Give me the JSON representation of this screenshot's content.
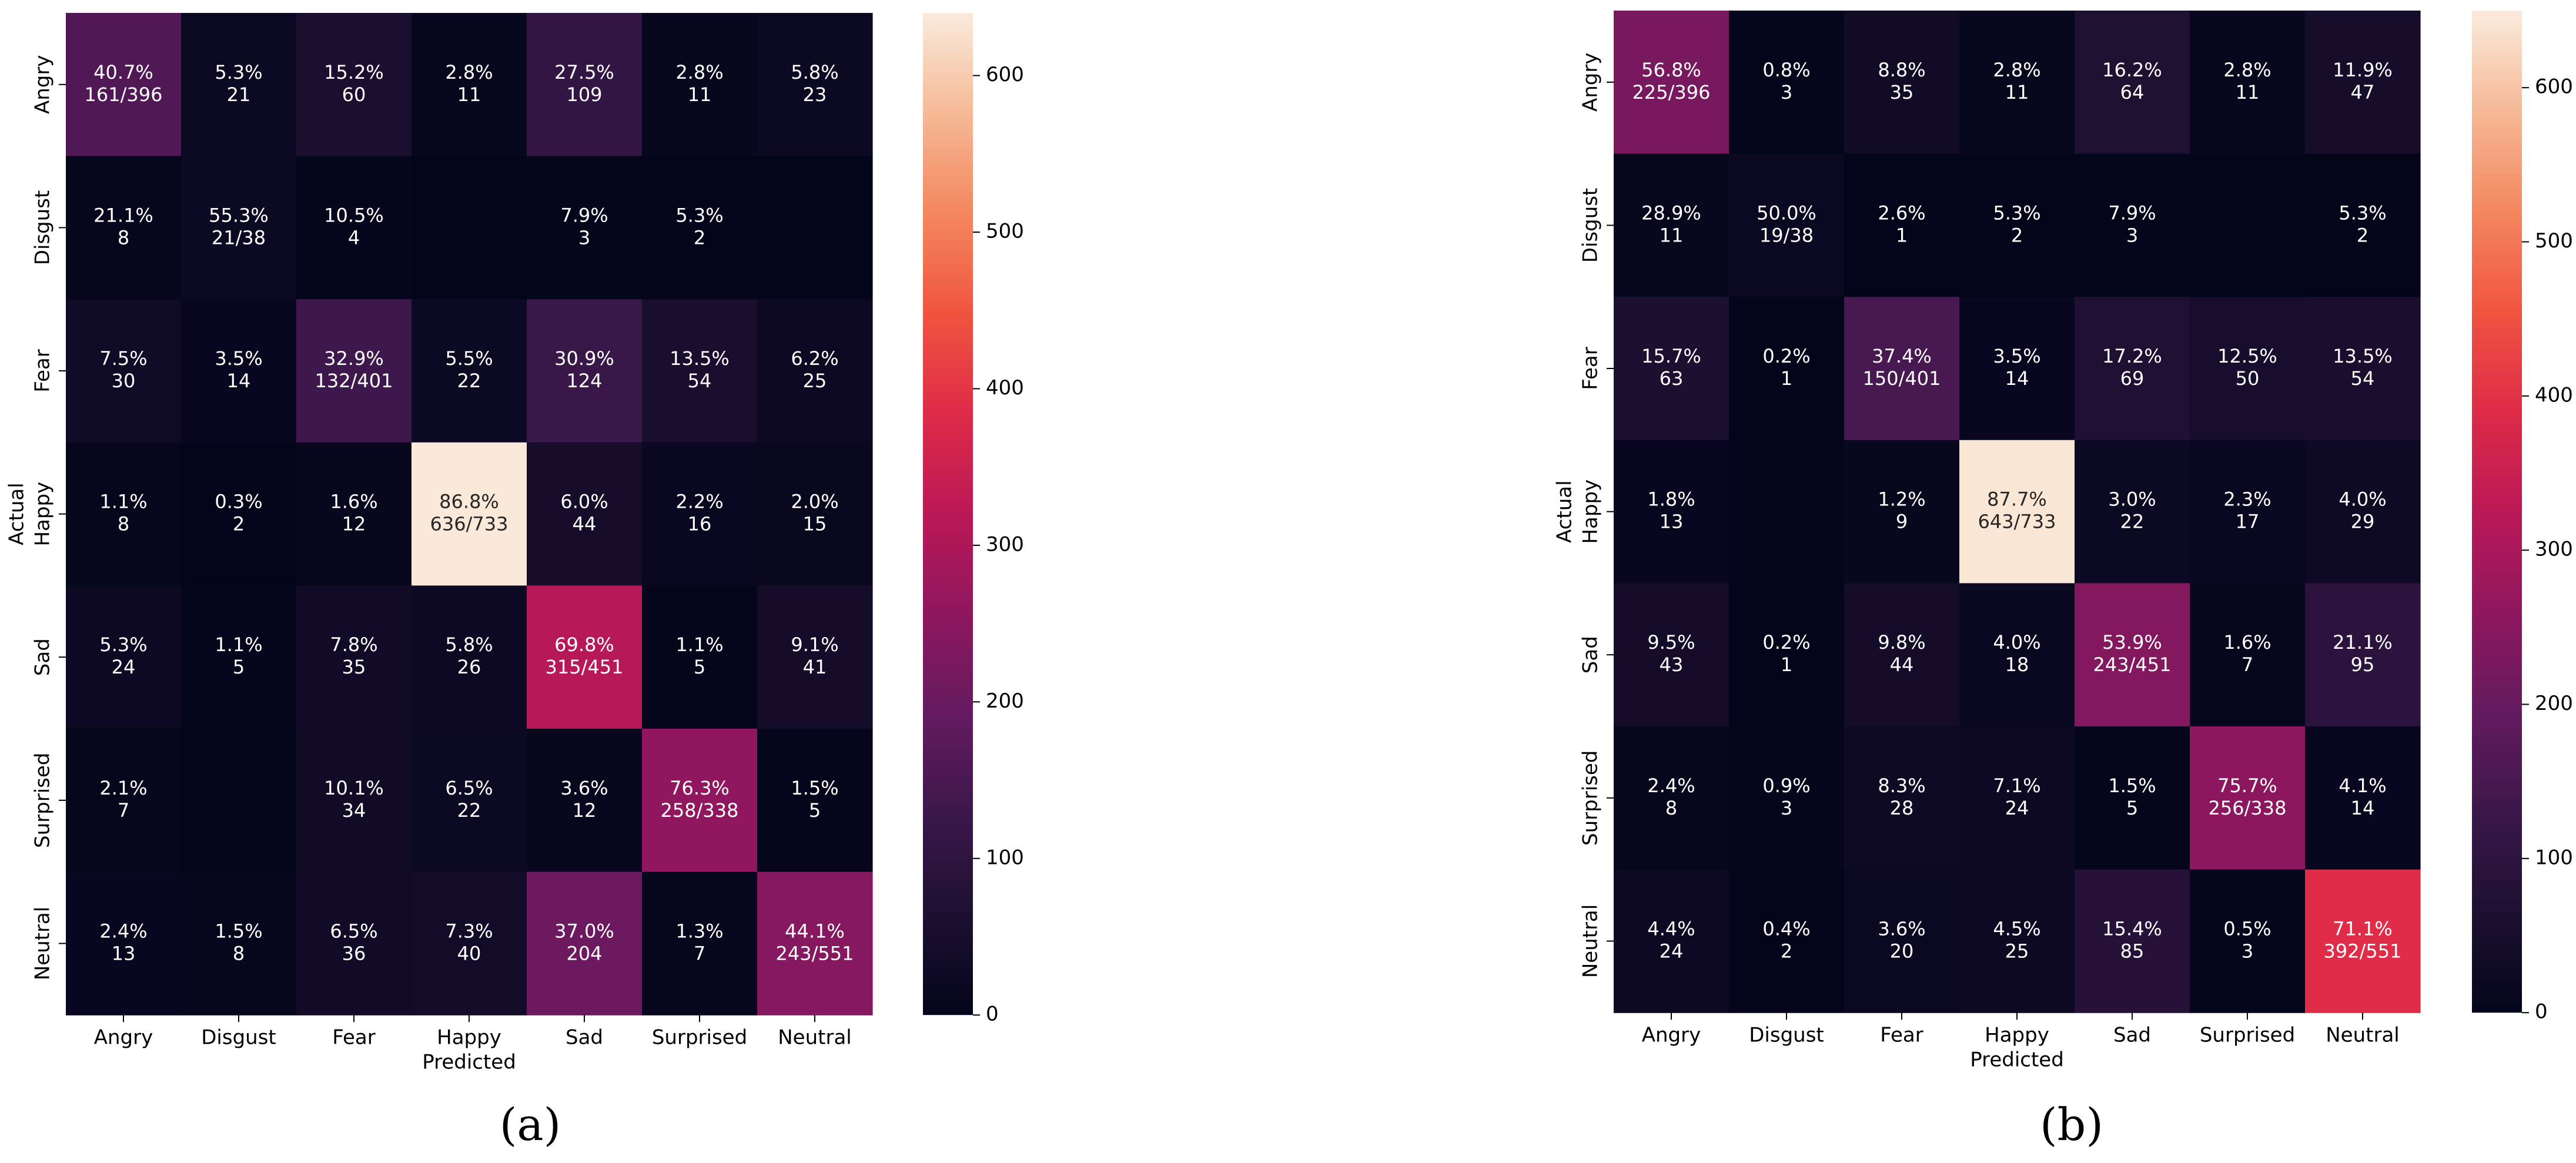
{
  "figure": {
    "captions": [
      "(a)",
      "(b)"
    ]
  },
  "chart_data": [
    {
      "type": "heatmap",
      "panel_label": "(a)",
      "xlabel": "Predicted",
      "ylabel": "Actual",
      "categories": [
        "Angry",
        "Disgust",
        "Fear",
        "Happy",
        "Sad",
        "Surprised",
        "Neutral"
      ],
      "colorbar": {
        "min": 0,
        "max": 640,
        "ticks": [
          0,
          100,
          200,
          300,
          400,
          500,
          600
        ]
      },
      "values": [
        [
          161,
          21,
          60,
          11,
          109,
          11,
          23
        ],
        [
          8,
          21,
          4,
          0,
          3,
          2,
          0
        ],
        [
          30,
          14,
          132,
          22,
          124,
          54,
          25
        ],
        [
          8,
          2,
          12,
          636,
          44,
          16,
          15
        ],
        [
          24,
          5,
          35,
          26,
          315,
          5,
          41
        ],
        [
          7,
          0,
          34,
          22,
          12,
          258,
          5
        ],
        [
          13,
          8,
          36,
          40,
          204,
          7,
          243
        ]
      ],
      "annotations": [
        [
          [
            "40.7%",
            "161/396"
          ],
          [
            "5.3%",
            "21"
          ],
          [
            "15.2%",
            "60"
          ],
          [
            "2.8%",
            "11"
          ],
          [
            "27.5%",
            "109"
          ],
          [
            "2.8%",
            "11"
          ],
          [
            "5.8%",
            "23"
          ]
        ],
        [
          [
            "21.1%",
            "8"
          ],
          [
            "55.3%",
            "21/38"
          ],
          [
            "10.5%",
            "4"
          ],
          [
            "",
            ""
          ],
          [
            "7.9%",
            "3"
          ],
          [
            "5.3%",
            "2"
          ],
          [
            "",
            ""
          ]
        ],
        [
          [
            "7.5%",
            "30"
          ],
          [
            "3.5%",
            "14"
          ],
          [
            "32.9%",
            "132/401"
          ],
          [
            "5.5%",
            "22"
          ],
          [
            "30.9%",
            "124"
          ],
          [
            "13.5%",
            "54"
          ],
          [
            "6.2%",
            "25"
          ]
        ],
        [
          [
            "1.1%",
            "8"
          ],
          [
            "0.3%",
            "2"
          ],
          [
            "1.6%",
            "12"
          ],
          [
            "86.8%",
            "636/733"
          ],
          [
            "6.0%",
            "44"
          ],
          [
            "2.2%",
            "16"
          ],
          [
            "2.0%",
            "15"
          ]
        ],
        [
          [
            "5.3%",
            "24"
          ],
          [
            "1.1%",
            "5"
          ],
          [
            "7.8%",
            "35"
          ],
          [
            "5.8%",
            "26"
          ],
          [
            "69.8%",
            "315/451"
          ],
          [
            "1.1%",
            "5"
          ],
          [
            "9.1%",
            "41"
          ]
        ],
        [
          [
            "2.1%",
            "7"
          ],
          [
            "",
            ""
          ],
          [
            "10.1%",
            "34"
          ],
          [
            "6.5%",
            "22"
          ],
          [
            "3.6%",
            "12"
          ],
          [
            "76.3%",
            "258/338"
          ],
          [
            "1.5%",
            "5"
          ]
        ],
        [
          [
            "2.4%",
            "13"
          ],
          [
            "1.5%",
            "8"
          ],
          [
            "6.5%",
            "36"
          ],
          [
            "7.3%",
            "40"
          ],
          [
            "37.0%",
            "204"
          ],
          [
            "1.3%",
            "7"
          ],
          [
            "44.1%",
            "243/551"
          ]
        ]
      ]
    },
    {
      "type": "heatmap",
      "panel_label": "(b)",
      "xlabel": "Predicted",
      "ylabel": "Actual",
      "categories": [
        "Angry",
        "Disgust",
        "Fear",
        "Happy",
        "Sad",
        "Surprised",
        "Neutral"
      ],
      "colorbar": {
        "min": 0,
        "max": 650,
        "ticks": [
          0,
          100,
          200,
          300,
          400,
          500,
          600
        ]
      },
      "values": [
        [
          225,
          3,
          35,
          11,
          64,
          11,
          47
        ],
        [
          11,
          19,
          1,
          2,
          3,
          0,
          2
        ],
        [
          63,
          1,
          150,
          14,
          69,
          50,
          54
        ],
        [
          13,
          0,
          9,
          643,
          22,
          17,
          29
        ],
        [
          43,
          1,
          44,
          18,
          243,
          7,
          95
        ],
        [
          8,
          3,
          28,
          24,
          5,
          256,
          14
        ],
        [
          24,
          2,
          20,
          25,
          85,
          3,
          392
        ]
      ],
      "annotations": [
        [
          [
            "56.8%",
            "225/396"
          ],
          [
            "0.8%",
            "3"
          ],
          [
            "8.8%",
            "35"
          ],
          [
            "2.8%",
            "11"
          ],
          [
            "16.2%",
            "64"
          ],
          [
            "2.8%",
            "11"
          ],
          [
            "11.9%",
            "47"
          ]
        ],
        [
          [
            "28.9%",
            "11"
          ],
          [
            "50.0%",
            "19/38"
          ],
          [
            "2.6%",
            "1"
          ],
          [
            "5.3%",
            "2"
          ],
          [
            "7.9%",
            "3"
          ],
          [
            "",
            ""
          ],
          [
            "5.3%",
            "2"
          ]
        ],
        [
          [
            "15.7%",
            "63"
          ],
          [
            "0.2%",
            "1"
          ],
          [
            "37.4%",
            "150/401"
          ],
          [
            "3.5%",
            "14"
          ],
          [
            "17.2%",
            "69"
          ],
          [
            "12.5%",
            "50"
          ],
          [
            "13.5%",
            "54"
          ]
        ],
        [
          [
            "1.8%",
            "13"
          ],
          [
            "",
            ""
          ],
          [
            "1.2%",
            "9"
          ],
          [
            "87.7%",
            "643/733"
          ],
          [
            "3.0%",
            "22"
          ],
          [
            "2.3%",
            "17"
          ],
          [
            "4.0%",
            "29"
          ]
        ],
        [
          [
            "9.5%",
            "43"
          ],
          [
            "0.2%",
            "1"
          ],
          [
            "9.8%",
            "44"
          ],
          [
            "4.0%",
            "18"
          ],
          [
            "53.9%",
            "243/451"
          ],
          [
            "1.6%",
            "7"
          ],
          [
            "21.1%",
            "95"
          ]
        ],
        [
          [
            "2.4%",
            "8"
          ],
          [
            "0.9%",
            "3"
          ],
          [
            "8.3%",
            "28"
          ],
          [
            "7.1%",
            "24"
          ],
          [
            "1.5%",
            "5"
          ],
          [
            "75.7%",
            "256/338"
          ],
          [
            "4.1%",
            "14"
          ]
        ],
        [
          [
            "4.4%",
            "24"
          ],
          [
            "0.4%",
            "2"
          ],
          [
            "3.6%",
            "20"
          ],
          [
            "4.5%",
            "25"
          ],
          [
            "15.4%",
            "85"
          ],
          [
            "0.5%",
            "3"
          ],
          [
            "71.1%",
            "392/551"
          ]
        ]
      ]
    }
  ]
}
